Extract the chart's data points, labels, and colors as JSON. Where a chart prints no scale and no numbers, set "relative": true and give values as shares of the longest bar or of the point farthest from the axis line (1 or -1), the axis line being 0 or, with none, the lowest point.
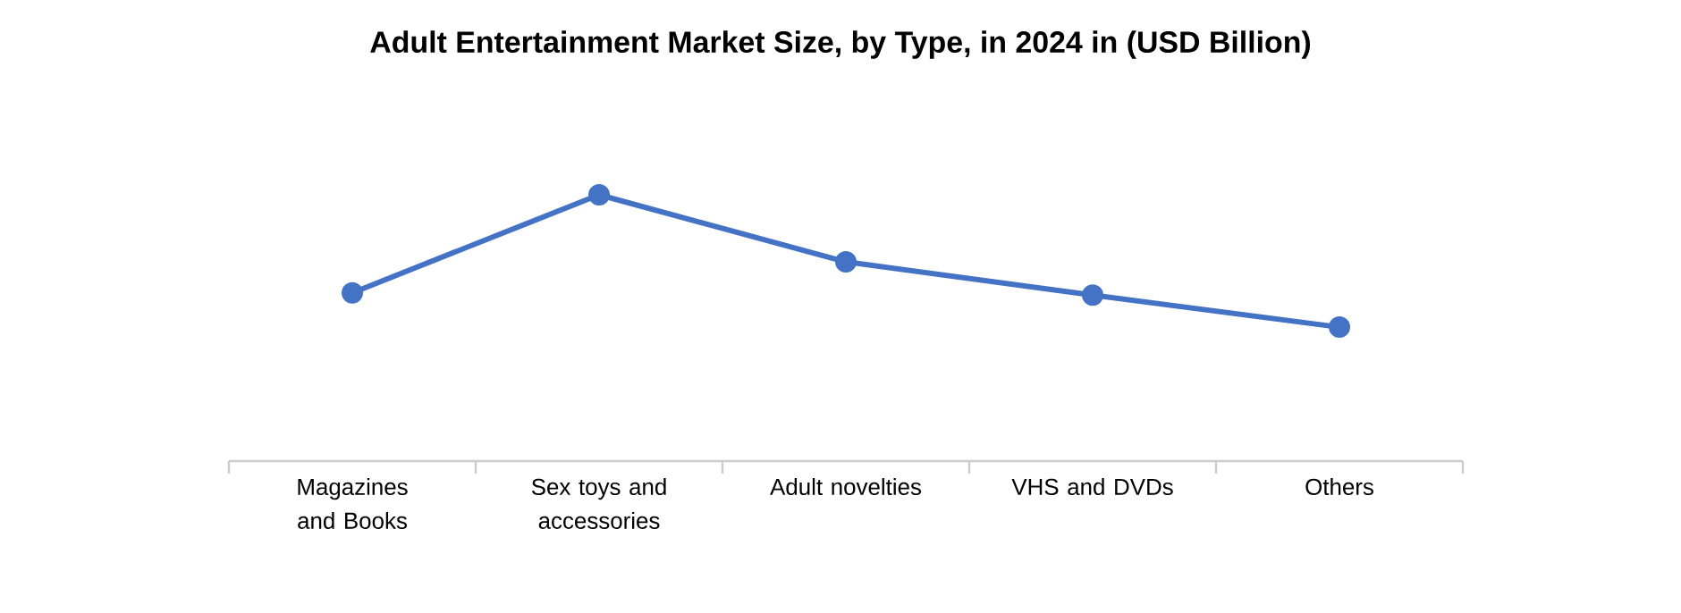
{
  "chart_data": {
    "type": "line",
    "title": "Adult Entertainment Market Size, by Type, in 2024 in (USD Billion)",
    "categories": [
      "Magazines and Books",
      "Sex toys and accessories",
      "Adult novelties",
      "VHS and DVDs",
      "Others"
    ],
    "values": [
      0.632,
      1,
      0.748,
      0.623,
      0.503
    ],
    "color": "#4472c4",
    "marker": "circle",
    "relative": true
  }
}
